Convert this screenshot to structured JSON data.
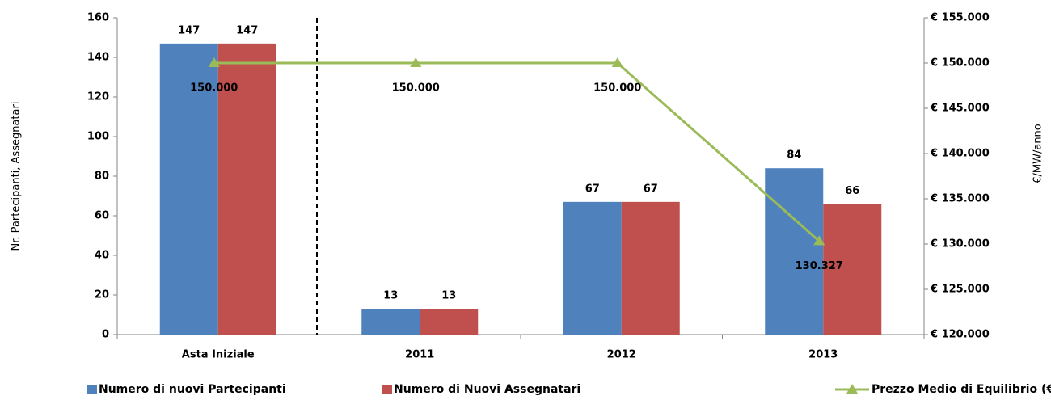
{
  "chart_data": {
    "type": "bar",
    "categories": [
      "Asta Iniziale",
      "2011",
      "2012",
      "2013"
    ],
    "ylabel": "Nr. Partecipanti, Assegnatari",
    "y2label": "€/MW/anno",
    "ylim": [
      0,
      160
    ],
    "yticks": [
      0,
      20,
      40,
      60,
      80,
      100,
      120,
      140,
      160
    ],
    "y2lim": [
      120000,
      155000
    ],
    "y2ticks": [
      {
        "value": 120000,
        "label": "€ 120.000"
      },
      {
        "value": 125000,
        "label": "€ 125.000"
      },
      {
        "value": 130000,
        "label": "€ 130.000"
      },
      {
        "value": 135000,
        "label": "€ 135.000"
      },
      {
        "value": 140000,
        "label": "€ 140.000"
      },
      {
        "value": 145000,
        "label": "€ 145.000"
      },
      {
        "value": 150000,
        "label": "€ 150.000"
      },
      {
        "value": 155000,
        "label": "€ 155.000"
      }
    ],
    "series": [
      {
        "name": "Numero di nuovi Partecipanti",
        "color": "#4f81bd",
        "values": [
          147,
          13,
          67,
          84
        ]
      },
      {
        "name": "Numero di Nuovi Assegnatari",
        "color": "#c0504d",
        "values": [
          147,
          13,
          67,
          66
        ]
      },
      {
        "name": "Prezzo Medio di Equilibrio (€/MW/anno)",
        "type": "line",
        "axis": "y2",
        "color": "#9bbb59",
        "values": [
          150000,
          150000,
          150000,
          130327
        ],
        "value_labels": [
          "150.000",
          "150.000",
          "150.000",
          "130.327"
        ]
      }
    ]
  }
}
